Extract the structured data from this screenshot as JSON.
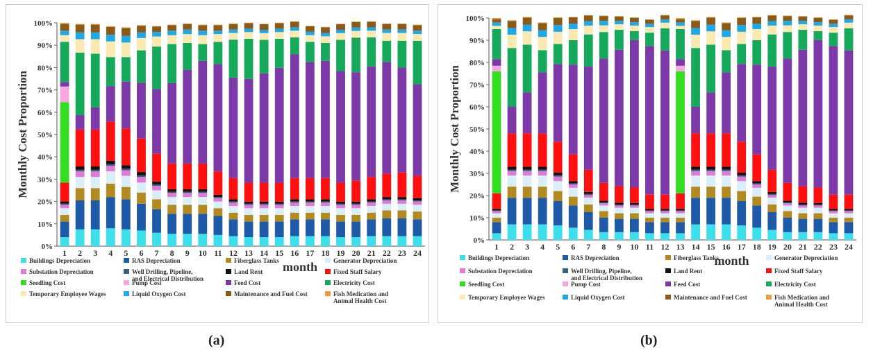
{
  "chart_data": [
    {
      "id": "a",
      "panel_label": "(a)",
      "type": "bar",
      "stacked": true,
      "ylabel": "Monthly Cost Proportion",
      "xlabel": "month",
      "ylim": [
        0,
        100
      ],
      "yticks": [
        "0%",
        "10%",
        "20%",
        "30%",
        "40%",
        "50%",
        "60%",
        "70%",
        "80%",
        "90%",
        "100%"
      ],
      "categories": [
        "1",
        "2",
        "3",
        "4",
        "5",
        "6",
        "7",
        "8",
        "9",
        "10",
        "11",
        "12",
        "13",
        "14",
        "15",
        "16",
        "17",
        "18",
        "19",
        "20",
        "21",
        "22",
        "23",
        "24"
      ],
      "series": [
        {
          "name": "Buildings Depreciation",
          "color": "#3de0ea",
          "values": [
            4,
            7.5,
            7.5,
            8,
            7.5,
            7,
            6,
            5.5,
            5.5,
            5.5,
            5,
            4.5,
            4,
            4,
            4,
            4.5,
            4.5,
            4.5,
            4,
            4,
            4.5,
            4.5,
            4.5,
            4.5
          ]
        },
        {
          "name": "RAS Depreciation",
          "color": "#1f5aa8",
          "values": [
            7,
            13,
            13,
            14,
            13.5,
            12,
            10.5,
            9,
            9,
            9,
            8.5,
            7.5,
            7,
            7,
            7,
            7.5,
            7.5,
            7.5,
            7,
            7,
            7.5,
            8,
            8,
            7.5
          ]
        },
        {
          "name": "Fiberglass Tanks",
          "color": "#b38a1f",
          "values": [
            3,
            5.5,
            5.5,
            6,
            5.5,
            5,
            4.5,
            4,
            4,
            4,
            3.5,
            3,
            3,
            3,
            3,
            3,
            3,
            3,
            3,
            3,
            3,
            3.5,
            3.5,
            3.5
          ]
        },
        {
          "name": "Generator Depreciation",
          "color": "#d9eef7",
          "values": [
            3,
            5,
            5,
            5.5,
            5,
            4.5,
            4,
            3.5,
            3.5,
            3.5,
            3,
            3,
            3,
            3,
            3,
            3,
            3,
            3,
            3,
            3,
            3,
            3,
            3,
            3
          ]
        },
        {
          "name": "Substation Depreciation",
          "color": "#e07ad9",
          "values": [
            1.5,
            2.5,
            2.5,
            2.5,
            2.5,
            2.5,
            2,
            1.8,
            1.8,
            1.8,
            1.5,
            1.5,
            1.5,
            1.5,
            1.5,
            1.5,
            1.5,
            1.5,
            1.5,
            1.5,
            1.5,
            1.5,
            1.5,
            1.5
          ]
        },
        {
          "name": "Well Drilling, Pipeline, and Electrical Distribution",
          "color": "#3a5f7f",
          "values": [
            0.5,
            0.7,
            0.7,
            0.7,
            0.7,
            0.7,
            0.6,
            0.5,
            0.5,
            0.5,
            0.5,
            0.5,
            0.5,
            0.5,
            0.5,
            0.5,
            0.5,
            0.5,
            0.5,
            0.5,
            0.5,
            0.5,
            0.5,
            0.5
          ]
        },
        {
          "name": "Land Rent",
          "color": "#111111",
          "values": [
            1,
            1.5,
            1.5,
            1.5,
            1.5,
            1.5,
            1.3,
            1.2,
            1.2,
            1.2,
            1,
            1,
            0.9,
            0.9,
            0.9,
            1,
            1,
            1,
            0.9,
            0.9,
            1,
            1,
            1,
            1
          ]
        },
        {
          "name": "Fixed Staff Salary",
          "color": "#ff1010",
          "values": [
            8.5,
            16.5,
            16.5,
            17.5,
            16.5,
            15,
            12.5,
            11.5,
            11.5,
            11.5,
            10.5,
            9.5,
            8.5,
            8.5,
            8.5,
            9.5,
            9.5,
            9.5,
            8.5,
            9.5,
            10,
            10.5,
            11,
            10
          ]
        },
        {
          "name": "Seedling Cost",
          "color": "#33dd22",
          "values": [
            36,
            0,
            0,
            0,
            0,
            0,
            0,
            0,
            0,
            0,
            0,
            0,
            0,
            0,
            0,
            0,
            0,
            0,
            0,
            0,
            0,
            0,
            0,
            0
          ]
        },
        {
          "name": "Pump Cost",
          "color": "#f7a6e0",
          "values": [
            7,
            0,
            0,
            0,
            0,
            0,
            0,
            0,
            0,
            0,
            0,
            0,
            0,
            0,
            0,
            0,
            0,
            0,
            0,
            0,
            0,
            0,
            0,
            0
          ]
        },
        {
          "name": "Feed Cost",
          "color": "#7b3aa8",
          "values": [
            2,
            6.5,
            10,
            16,
            21,
            25,
            29,
            36,
            42,
            46,
            48,
            45,
            46.5,
            49,
            51.5,
            55.5,
            52,
            52.5,
            50,
            48.5,
            49.5,
            50,
            47,
            41
          ]
        },
        {
          "name": "Electricity Cost",
          "color": "#16a85b",
          "values": [
            18,
            28,
            24,
            13,
            11,
            14.5,
            19,
            17.5,
            12,
            7.5,
            10,
            17,
            18,
            15,
            13,
            7.5,
            9,
            8,
            14,
            15.5,
            13,
            9.5,
            12,
            19.5
          ]
        },
        {
          "name": "Temporary Employee Wages",
          "color": "#fae9b0",
          "values": [
            3,
            6,
            6.5,
            7,
            6.5,
            5.5,
            4.5,
            4,
            4,
            4,
            3.5,
            3,
            3,
            3,
            3,
            3,
            3,
            3,
            3,
            3,
            3,
            3.5,
            3.5,
            3
          ]
        },
        {
          "name": "Liquid Oxygen Cost",
          "color": "#1fa8e8",
          "values": [
            2,
            3,
            3,
            3,
            3,
            2.5,
            2,
            2,
            2,
            2,
            1.5,
            1.5,
            1.5,
            1.5,
            1.5,
            1.5,
            1.5,
            1.5,
            1.5,
            1.5,
            1.5,
            1.5,
            1.5,
            1.5
          ]
        },
        {
          "name": "Maintenance and Fuel Cost",
          "color": "#8a5a1a",
          "values": [
            3,
            3.5,
            3.5,
            3.5,
            3.5,
            3,
            2.5,
            2.5,
            2.5,
            2.5,
            2.5,
            2.5,
            2.5,
            2.5,
            2.5,
            2.5,
            2.5,
            2.5,
            2.5,
            2.5,
            2.5,
            2.5,
            2.5,
            2.5
          ]
        },
        {
          "name": "Fish Medication and Animal Health Cost",
          "color": "#f29a3a",
          "values": [
            0.5,
            0.3,
            0.3,
            0.3,
            0.3,
            0.3,
            0.2,
            0.2,
            0.2,
            0.2,
            0.2,
            0.2,
            0.2,
            0.2,
            0.2,
            0.2,
            0.2,
            0.2,
            0.2,
            0.2,
            0.2,
            0.2,
            0.2,
            0.2
          ]
        }
      ]
    },
    {
      "id": "b",
      "panel_label": "(b)",
      "type": "bar",
      "stacked": true,
      "ylabel": "Monthly Cost Proportion",
      "xlabel": "month",
      "ylim": [
        0,
        100
      ],
      "yticks": [
        "0%",
        "10%",
        "20%",
        "30%",
        "40%",
        "50%",
        "60%",
        "70%",
        "80%",
        "90%",
        "100%"
      ],
      "categories": [
        "1",
        "2",
        "3",
        "4",
        "5",
        "6",
        "7",
        "8",
        "9",
        "10",
        "11",
        "12",
        "13",
        "14",
        "15",
        "16",
        "17",
        "18",
        "19",
        "20",
        "21",
        "22",
        "23",
        "24"
      ],
      "series": [
        {
          "name": "Buildings Depreciation",
          "color": "#3de0ea",
          "values": [
            3,
            7,
            7,
            7,
            6.5,
            5.5,
            4.5,
            3.5,
            3.5,
            3.5,
            3,
            3,
            3,
            7,
            7,
            7,
            6.5,
            5.5,
            4.5,
            3.5,
            3.5,
            3.5,
            3,
            3
          ]
        },
        {
          "name": "RAS Depreciation",
          "color": "#1f5aa8",
          "values": [
            5,
            12,
            12,
            12,
            11,
            10,
            8,
            6.5,
            6,
            6,
            5,
            5,
            5,
            12,
            12,
            12,
            11,
            10,
            8,
            6.5,
            6,
            6,
            5,
            5
          ]
        },
        {
          "name": "Fiberglass Tanks",
          "color": "#b38a1f",
          "values": [
            2,
            5,
            5,
            5,
            4.5,
            4,
            3.5,
            3,
            2.5,
            2.5,
            2,
            2,
            2,
            5,
            5,
            5,
            4.5,
            4,
            3.5,
            3,
            2.5,
            2.5,
            2,
            2
          ]
        },
        {
          "name": "Generator Depreciation",
          "color": "#d9eef7",
          "values": [
            2,
            5,
            5,
            5,
            4.5,
            4,
            3,
            2.5,
            2.5,
            2.5,
            2,
            2,
            2,
            5,
            5,
            5,
            4.5,
            4,
            3,
            2.5,
            2.5,
            2.5,
            2,
            2
          ]
        },
        {
          "name": "Substation Depreciation",
          "color": "#e07ad9",
          "values": [
            1,
            2,
            2,
            2,
            2,
            1.5,
            1.2,
            1,
            1,
            1,
            1,
            1,
            1,
            2,
            2,
            2,
            2,
            1.5,
            1.2,
            1,
            1,
            1,
            1,
            1
          ]
        },
        {
          "name": "Well Drilling, Pipeline, and Electrical Distribution",
          "color": "#3a5f7f",
          "values": [
            0.3,
            0.7,
            0.7,
            0.7,
            0.6,
            0.5,
            0.5,
            0.4,
            0.4,
            0.4,
            0.3,
            0.3,
            0.3,
            0.7,
            0.7,
            0.7,
            0.6,
            0.5,
            0.5,
            0.4,
            0.4,
            0.4,
            0.3,
            0.3
          ]
        },
        {
          "name": "Land Rent",
          "color": "#111111",
          "values": [
            0.7,
            1.3,
            1.3,
            1.3,
            1.2,
            1,
            0.9,
            0.8,
            0.8,
            0.7,
            0.6,
            0.6,
            0.7,
            1.3,
            1.3,
            1.3,
            1.2,
            1,
            0.9,
            0.8,
            0.8,
            0.7,
            0.6,
            0.6
          ]
        },
        {
          "name": "Fixed Staff Salary",
          "color": "#ff1010",
          "values": [
            7,
            15,
            15,
            15,
            14,
            12,
            10,
            8,
            7.5,
            7,
            6.5,
            6.5,
            7,
            15,
            15,
            15,
            14,
            12,
            10,
            8,
            7.5,
            7,
            6.5,
            6.5
          ]
        },
        {
          "name": "Seedling Cost",
          "color": "#33dd22",
          "values": [
            55,
            0,
            0,
            0,
            0,
            0,
            0,
            0,
            0,
            0,
            0,
            0,
            55,
            0,
            0,
            0,
            0,
            0,
            0,
            0,
            0,
            0,
            0,
            0
          ]
        },
        {
          "name": "Pump Cost",
          "color": "#f7a6e0",
          "values": [
            2.5,
            0,
            0,
            0,
            0,
            0,
            0,
            0,
            0,
            0,
            0,
            0,
            2.5,
            0,
            0,
            0,
            0,
            0,
            0,
            0,
            0,
            0,
            0,
            0
          ]
        },
        {
          "name": "Feed Cost",
          "color": "#7b3aa8",
          "values": [
            3,
            12,
            18.5,
            27.5,
            35,
            40.5,
            46.5,
            56,
            61.5,
            66.5,
            67,
            65,
            3,
            12,
            18.5,
            27.5,
            35,
            40.5,
            46.5,
            56,
            61.5,
            66.5,
            67,
            65
          ]
        },
        {
          "name": "Electricity Cost",
          "color": "#16a85b",
          "values": [
            13.5,
            26.5,
            21.5,
            10,
            9,
            11,
            14.5,
            12,
            9,
            4,
            6,
            10,
            13.5,
            26.5,
            21.5,
            10,
            9,
            11,
            14.5,
            12,
            9,
            4,
            6,
            10
          ]
        },
        {
          "name": "Temporary Employee Wages",
          "color": "#fae9b0",
          "values": [
            1.5,
            6,
            6,
            6,
            5.5,
            5,
            4,
            3,
            2.5,
            2.5,
            2.5,
            2.5,
            1.5,
            6,
            6,
            6,
            5.5,
            5,
            4,
            3,
            2.5,
            2.5,
            2.5,
            2.5
          ]
        },
        {
          "name": "Liquid Oxygen Cost",
          "color": "#1fa8e8",
          "values": [
            1.5,
            3,
            3,
            3,
            3,
            2.5,
            2,
            2,
            1.5,
            1.5,
            1.5,
            1.5,
            1.5,
            3,
            3,
            3,
            3,
            2.5,
            2,
            2,
            1.5,
            1.5,
            1.5,
            1.5
          ]
        },
        {
          "name": "Maintenance and Fuel Cost",
          "color": "#8a5a1a",
          "values": [
            1.5,
            3.2,
            3.2,
            3.2,
            3.2,
            2.8,
            2.5,
            2.2,
            2,
            2,
            1.8,
            1.8,
            1.5,
            3.2,
            3.2,
            3.2,
            3.2,
            2.8,
            2.5,
            2.2,
            2,
            2,
            1.8,
            1.8
          ]
        },
        {
          "name": "Fish Medication and Animal Health Cost",
          "color": "#f29a3a",
          "values": [
            0.5,
            0.3,
            0.3,
            0.3,
            0.3,
            0.2,
            0.2,
            0.2,
            0.2,
            0.2,
            0.2,
            0.2,
            0.5,
            0.3,
            0.3,
            0.3,
            0.3,
            0.2,
            0.2,
            0.2,
            0.2,
            0.2,
            0.2,
            0.2
          ]
        }
      ]
    }
  ],
  "legend_rows": [
    [
      "Buildings Depreciation",
      "RAS Depreciation",
      "Fiberglass Tanks",
      "Generator Depreciation"
    ],
    [
      "Substation Depreciation",
      "Well Drilling, Pipeline, and Electrical Distribution",
      "Land Rent",
      "Fixed Staff Salary"
    ],
    [
      "Seedling Cost",
      "Pump Cost",
      "Feed Cost",
      "Electricity Cost"
    ],
    [
      "Temporary Employee Wages",
      "Liquid Oxygen Cost",
      "Maintenance and Fuel Cost",
      "Fish Medication and Animal Health Cost"
    ]
  ]
}
